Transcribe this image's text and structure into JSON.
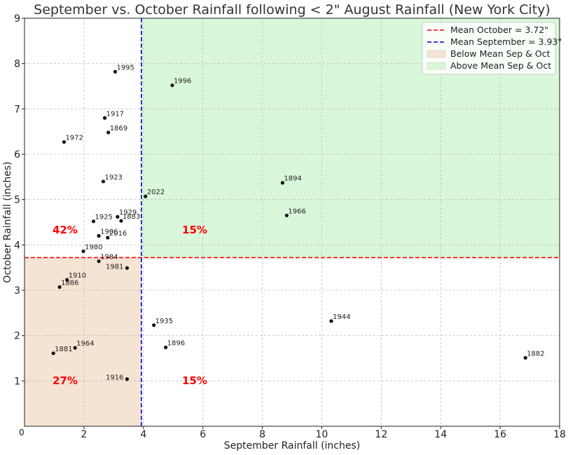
{
  "chart_data": {
    "type": "scatter",
    "title": "September vs. October Rainfall following < 2\" August Rainfall (New York City)",
    "xlabel": "September Rainfall (inches)",
    "ylabel": "October Rainfall (inches)",
    "xlim": [
      0,
      18
    ],
    "ylim": [
      0,
      9
    ],
    "x_ticks": [
      "0",
      "2",
      "4",
      "6",
      "8",
      "10",
      "12",
      "14",
      "16",
      "18"
    ],
    "y_ticks": [
      "1",
      "2",
      "3",
      "4",
      "5",
      "6",
      "7",
      "8",
      "9"
    ],
    "grid": true,
    "legend_position": "top-right",
    "mean_october": 3.72,
    "mean_september": 3.93,
    "colors": {
      "mean_october_line": "#ff0000",
      "mean_september_line": "#0000cc",
      "below_region": "#f5e3d3",
      "above_region": "#d9f7d9",
      "points": "#111111",
      "percent_text": "#ff0000"
    },
    "legend": [
      {
        "label": "Mean October = 3.72\"",
        "kind": "dashed-line",
        "color": "#ff0000"
      },
      {
        "label": "Mean September = 3.93\"",
        "kind": "dashed-line",
        "color": "#0000cc"
      },
      {
        "label": "Below Mean Sep & Oct",
        "kind": "patch",
        "color": "#f5e3d3"
      },
      {
        "label": "Above Mean Sep & Oct",
        "kind": "patch",
        "color": "#d9f7d9"
      }
    ],
    "quadrant_percentages": [
      {
        "quadrant": "upper-left",
        "text": "42%"
      },
      {
        "quadrant": "upper-right",
        "text": "15%"
      },
      {
        "quadrant": "lower-left",
        "text": "27%"
      },
      {
        "quadrant": "lower-right",
        "text": "15%"
      }
    ],
    "points": [
      {
        "label": "1995",
        "x": 3.05,
        "y": 7.82
      },
      {
        "label": "1996",
        "x": 4.97,
        "y": 7.52
      },
      {
        "label": "1917",
        "x": 2.7,
        "y": 6.8
      },
      {
        "label": "1869",
        "x": 2.82,
        "y": 6.48
      },
      {
        "label": "1972",
        "x": 1.33,
        "y": 6.27
      },
      {
        "label": "1923",
        "x": 2.65,
        "y": 5.4
      },
      {
        "label": "2022",
        "x": 4.07,
        "y": 5.07
      },
      {
        "label": "1894",
        "x": 8.68,
        "y": 5.37
      },
      {
        "label": "1966",
        "x": 8.82,
        "y": 4.65
      },
      {
        "label": "1929",
        "x": 3.13,
        "y": 4.62
      },
      {
        "label": "1883",
        "x": 3.25,
        "y": 4.53
      },
      {
        "label": "1925",
        "x": 2.32,
        "y": 4.52
      },
      {
        "label": "1906",
        "x": 2.5,
        "y": 4.2
      },
      {
        "label": "2016",
        "x": 2.8,
        "y": 4.16
      },
      {
        "label": "1980",
        "x": 1.98,
        "y": 3.86
      },
      {
        "label": "1984",
        "x": 2.5,
        "y": 3.64
      },
      {
        "label": "1981",
        "x": 3.45,
        "y": 3.49
      },
      {
        "label": "1910",
        "x": 1.43,
        "y": 3.23
      },
      {
        "label": "1886",
        "x": 1.18,
        "y": 3.07
      },
      {
        "label": "1935",
        "x": 4.35,
        "y": 2.23
      },
      {
        "label": "1944",
        "x": 10.32,
        "y": 2.32
      },
      {
        "label": "1896",
        "x": 4.75,
        "y": 1.74
      },
      {
        "label": "1964",
        "x": 1.7,
        "y": 1.73
      },
      {
        "label": "1881",
        "x": 0.97,
        "y": 1.61
      },
      {
        "label": "1882",
        "x": 16.85,
        "y": 1.51
      },
      {
        "label": "1916",
        "x": 3.45,
        "y": 1.04
      }
    ]
  }
}
